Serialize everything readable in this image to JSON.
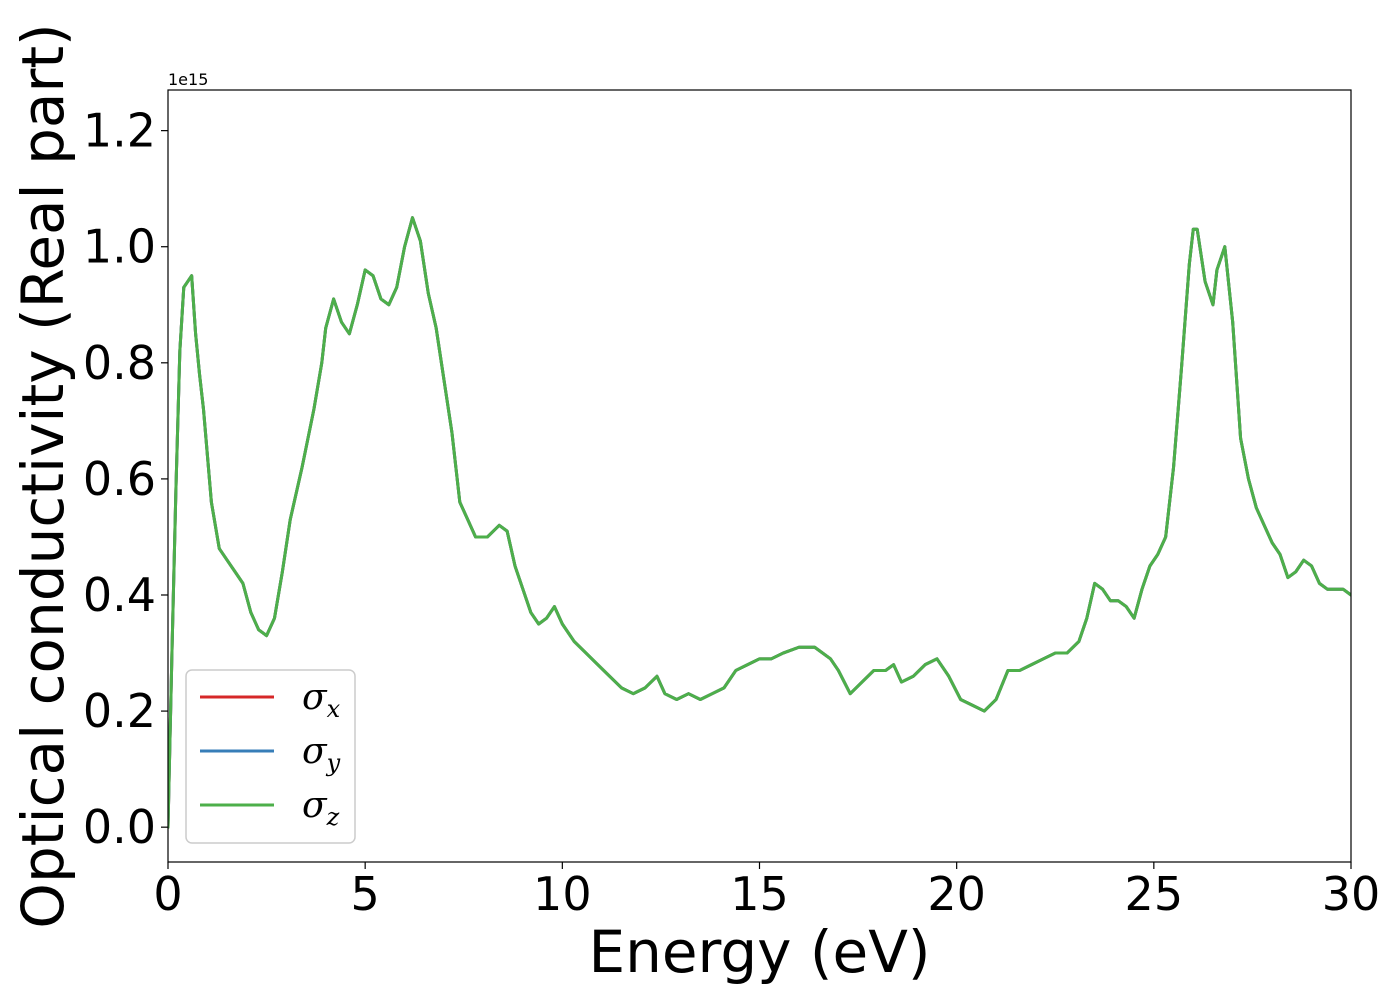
{
  "chart_data": {
    "type": "line",
    "xlabel": "Energy (eV)",
    "ylabel": "Optical conductivity (Real part)",
    "offset_text": "1e15",
    "xlim": [
      0,
      30
    ],
    "ylim": [
      -0.06,
      1.27
    ],
    "xticks": [
      0,
      5,
      10,
      15,
      20,
      25,
      30
    ],
    "xtick_labels": [
      "0",
      "5",
      "10",
      "15",
      "20",
      "25",
      "30"
    ],
    "yticks": [
      0.0,
      0.2,
      0.4,
      0.6,
      0.8,
      1.0,
      1.2
    ],
    "ytick_labels": [
      "0.0",
      "0.2",
      "0.4",
      "0.6",
      "0.8",
      "1.0",
      "1.2"
    ],
    "grid": false,
    "legend_position": "lower-left",
    "x": [
      0.0,
      0.1,
      0.2,
      0.3,
      0.4,
      0.5,
      0.6,
      0.7,
      0.8,
      0.9,
      1.0,
      1.1,
      1.3,
      1.5,
      1.7,
      1.9,
      2.1,
      2.3,
      2.5,
      2.7,
      2.9,
      3.1,
      3.4,
      3.7,
      3.9,
      4.0,
      4.2,
      4.4,
      4.6,
      4.8,
      5.0,
      5.2,
      5.4,
      5.6,
      5.8,
      6.0,
      6.2,
      6.4,
      6.6,
      6.8,
      7.0,
      7.2,
      7.4,
      7.6,
      7.8,
      8.1,
      8.4,
      8.6,
      8.8,
      9.0,
      9.2,
      9.4,
      9.6,
      9.8,
      10.0,
      10.3,
      10.6,
      10.9,
      11.2,
      11.5,
      11.8,
      12.1,
      12.4,
      12.6,
      12.9,
      13.2,
      13.5,
      13.8,
      14.1,
      14.4,
      14.7,
      15.0,
      15.3,
      15.6,
      16.0,
      16.4,
      16.8,
      17.0,
      17.3,
      17.6,
      17.9,
      18.2,
      18.4,
      18.6,
      18.9,
      19.2,
      19.5,
      19.8,
      20.1,
      20.4,
      20.7,
      21.0,
      21.3,
      21.6,
      21.9,
      22.2,
      22.5,
      22.8,
      23.1,
      23.3,
      23.5,
      23.7,
      23.9,
      24.1,
      24.3,
      24.5,
      24.7,
      24.9,
      25.1,
      25.3,
      25.5,
      25.7,
      25.9,
      26.0,
      26.1,
      26.3,
      26.5,
      26.6,
      26.8,
      27.0,
      27.2,
      27.4,
      27.6,
      27.8,
      28.0,
      28.2,
      28.4,
      28.6,
      28.8,
      29.0,
      29.2,
      29.4,
      29.6,
      29.8,
      30.0
    ],
    "series": [
      {
        "name": "σx",
        "color": "#d62728",
        "values": [
          0.0,
          0.3,
          0.58,
          0.82,
          0.93,
          0.94,
          0.95,
          0.85,
          0.78,
          0.72,
          0.64,
          0.56,
          0.48,
          0.46,
          0.44,
          0.42,
          0.37,
          0.34,
          0.33,
          0.36,
          0.44,
          0.53,
          0.62,
          0.72,
          0.8,
          0.86,
          0.91,
          0.87,
          0.85,
          0.9,
          0.96,
          0.95,
          0.91,
          0.9,
          0.93,
          1.0,
          1.05,
          1.01,
          0.92,
          0.86,
          0.77,
          0.68,
          0.56,
          0.53,
          0.5,
          0.5,
          0.52,
          0.51,
          0.45,
          0.41,
          0.37,
          0.35,
          0.36,
          0.38,
          0.35,
          0.32,
          0.3,
          0.28,
          0.26,
          0.24,
          0.23,
          0.24,
          0.26,
          0.23,
          0.22,
          0.23,
          0.22,
          0.23,
          0.24,
          0.27,
          0.28,
          0.29,
          0.29,
          0.3,
          0.31,
          0.31,
          0.29,
          0.27,
          0.23,
          0.25,
          0.27,
          0.27,
          0.28,
          0.25,
          0.26,
          0.28,
          0.29,
          0.26,
          0.22,
          0.21,
          0.2,
          0.22,
          0.27,
          0.27,
          0.28,
          0.29,
          0.3,
          0.3,
          0.32,
          0.36,
          0.42,
          0.41,
          0.39,
          0.39,
          0.38,
          0.36,
          0.41,
          0.45,
          0.47,
          0.5,
          0.62,
          0.79,
          0.97,
          1.03,
          1.03,
          0.94,
          0.9,
          0.96,
          1.0,
          0.87,
          0.67,
          0.6,
          0.55,
          0.52,
          0.49,
          0.47,
          0.43,
          0.44,
          0.46,
          0.45,
          0.42,
          0.41,
          0.41,
          0.41,
          0.4
        ]
      },
      {
        "name": "σy",
        "color": "#377eb8",
        "values": [
          0.0,
          0.3,
          0.58,
          0.82,
          0.93,
          0.94,
          0.95,
          0.85,
          0.78,
          0.72,
          0.64,
          0.56,
          0.48,
          0.46,
          0.44,
          0.42,
          0.37,
          0.34,
          0.33,
          0.36,
          0.44,
          0.53,
          0.62,
          0.72,
          0.8,
          0.86,
          0.91,
          0.87,
          0.85,
          0.9,
          0.96,
          0.95,
          0.91,
          0.9,
          0.93,
          1.0,
          1.05,
          1.01,
          0.92,
          0.86,
          0.77,
          0.68,
          0.56,
          0.53,
          0.5,
          0.5,
          0.52,
          0.51,
          0.45,
          0.41,
          0.37,
          0.35,
          0.36,
          0.38,
          0.35,
          0.32,
          0.3,
          0.28,
          0.26,
          0.24,
          0.23,
          0.24,
          0.26,
          0.23,
          0.22,
          0.23,
          0.22,
          0.23,
          0.24,
          0.27,
          0.28,
          0.29,
          0.29,
          0.3,
          0.31,
          0.31,
          0.29,
          0.27,
          0.23,
          0.25,
          0.27,
          0.27,
          0.28,
          0.25,
          0.26,
          0.28,
          0.29,
          0.26,
          0.22,
          0.21,
          0.2,
          0.22,
          0.27,
          0.27,
          0.28,
          0.29,
          0.3,
          0.3,
          0.32,
          0.36,
          0.42,
          0.41,
          0.39,
          0.39,
          0.38,
          0.36,
          0.41,
          0.45,
          0.47,
          0.5,
          0.62,
          0.79,
          0.97,
          1.03,
          1.03,
          0.94,
          0.9,
          0.96,
          1.0,
          0.87,
          0.67,
          0.6,
          0.55,
          0.52,
          0.49,
          0.47,
          0.43,
          0.44,
          0.46,
          0.45,
          0.42,
          0.41,
          0.41,
          0.41,
          0.4
        ]
      },
      {
        "name": "σz",
        "color": "#4daf4a",
        "values": [
          0.0,
          0.3,
          0.58,
          0.82,
          0.93,
          0.94,
          0.95,
          0.85,
          0.78,
          0.72,
          0.64,
          0.56,
          0.48,
          0.46,
          0.44,
          0.42,
          0.37,
          0.34,
          0.33,
          0.36,
          0.44,
          0.53,
          0.62,
          0.72,
          0.8,
          0.86,
          0.91,
          0.87,
          0.85,
          0.9,
          0.96,
          0.95,
          0.91,
          0.9,
          0.93,
          1.0,
          1.05,
          1.01,
          0.92,
          0.86,
          0.77,
          0.68,
          0.56,
          0.53,
          0.5,
          0.5,
          0.52,
          0.51,
          0.45,
          0.41,
          0.37,
          0.35,
          0.36,
          0.38,
          0.35,
          0.32,
          0.3,
          0.28,
          0.26,
          0.24,
          0.23,
          0.24,
          0.26,
          0.23,
          0.22,
          0.23,
          0.22,
          0.23,
          0.24,
          0.27,
          0.28,
          0.29,
          0.29,
          0.3,
          0.31,
          0.31,
          0.29,
          0.27,
          0.23,
          0.25,
          0.27,
          0.27,
          0.28,
          0.25,
          0.26,
          0.28,
          0.29,
          0.26,
          0.22,
          0.21,
          0.2,
          0.22,
          0.27,
          0.27,
          0.28,
          0.29,
          0.3,
          0.3,
          0.32,
          0.36,
          0.42,
          0.41,
          0.39,
          0.39,
          0.38,
          0.36,
          0.41,
          0.45,
          0.47,
          0.5,
          0.62,
          0.79,
          0.97,
          1.03,
          1.03,
          0.94,
          0.9,
          0.96,
          1.0,
          0.87,
          0.67,
          0.6,
          0.55,
          0.52,
          0.49,
          0.47,
          0.43,
          0.44,
          0.46,
          0.45,
          0.42,
          0.41,
          0.41,
          0.41,
          0.4
        ]
      }
    ],
    "legend": [
      {
        "symbol": "σ",
        "sub": "x",
        "color": "#d62728"
      },
      {
        "symbol": "σ",
        "sub": "y",
        "color": "#377eb8"
      },
      {
        "symbol": "σ",
        "sub": "z",
        "color": "#4daf4a"
      }
    ]
  }
}
